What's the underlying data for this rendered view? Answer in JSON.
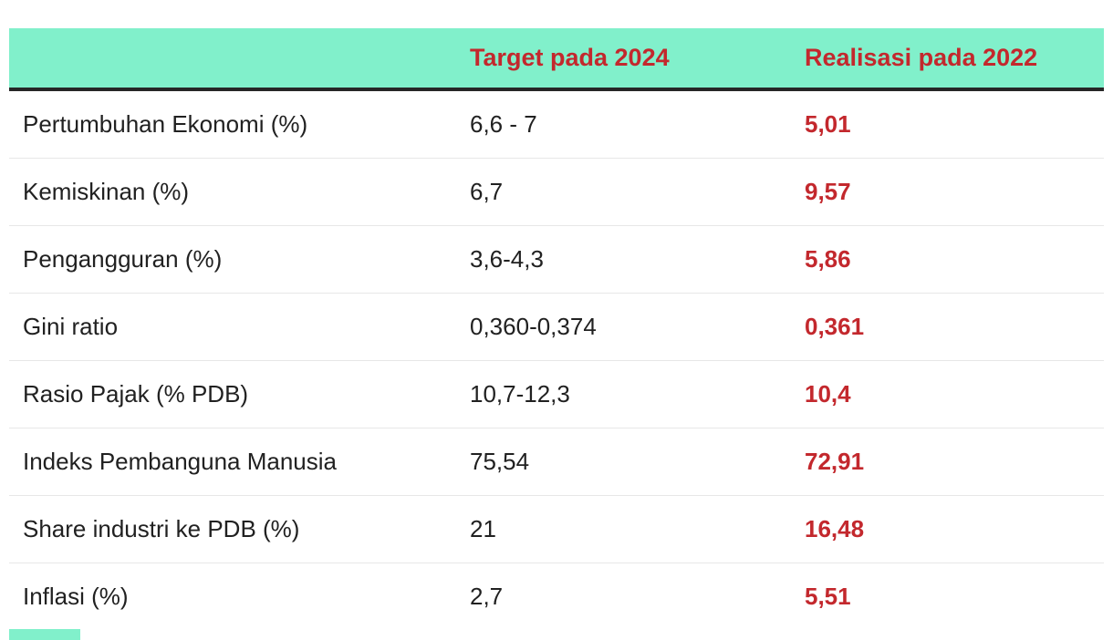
{
  "chart_data": {
    "type": "table",
    "columns": [
      "",
      "Target pada 2024",
      "Realisasi pada 2022"
    ],
    "rows": [
      {
        "label": "Pertumbuhan Ekonomi (%)",
        "target": "6,6 - 7",
        "realisasi": "5,01"
      },
      {
        "label": "Kemiskinan (%)",
        "target": "6,7",
        "realisasi": "9,57"
      },
      {
        "label": "Pengangguran (%)",
        "target": "3,6-4,3",
        "realisasi": "5,86"
      },
      {
        "label": "Gini ratio",
        "target": "0,360-0,374",
        "realisasi": "0,361"
      },
      {
        "label": "Rasio Pajak (% PDB)",
        "target": "10,7-12,3",
        "realisasi": "10,4"
      },
      {
        "label": "Indeks Pembanguna Manusia",
        "target": "75,54",
        "realisasi": "72,91"
      },
      {
        "label": "Share industri ke PDB (%)",
        "target": "21",
        "realisasi": "16,48"
      },
      {
        "label": "Inflasi (%)",
        "target": "2,7",
        "realisasi": "5,51"
      }
    ]
  },
  "colors": {
    "header_bg": "#81F0CB",
    "accent_red": "#C3282D",
    "text_dark": "#212121",
    "divider": "#E7E7E7",
    "header_rule": "#262626"
  }
}
